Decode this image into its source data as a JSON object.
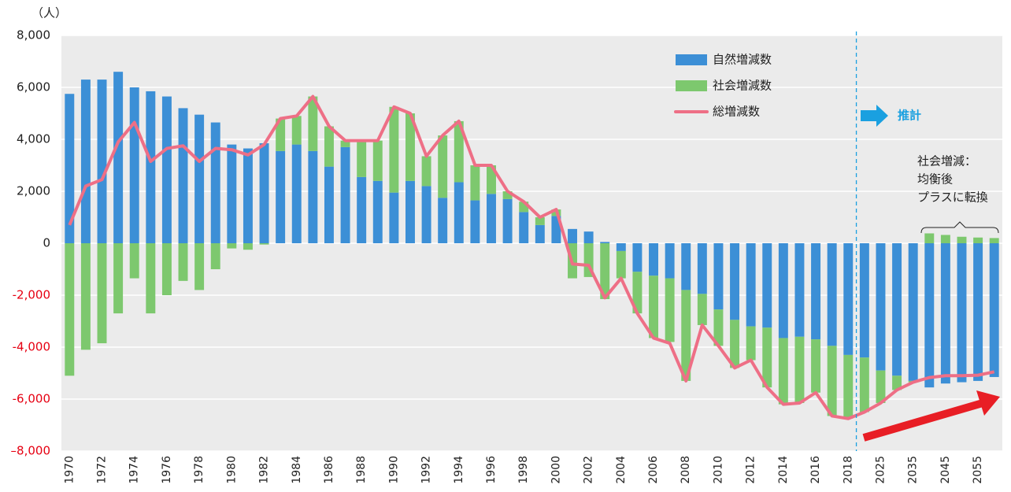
{
  "chart_data": {
    "type": "bar",
    "unit_label": "（人）",
    "categories": [
      "1970",
      null,
      "1972",
      null,
      "1974",
      null,
      "1976",
      null,
      "1978",
      null,
      "1980",
      null,
      "1982",
      null,
      "1984",
      null,
      "1986",
      null,
      "1988",
      null,
      "1990",
      null,
      "1992",
      null,
      "1994",
      null,
      "1996",
      null,
      "1998",
      null,
      "2000",
      null,
      "2002",
      null,
      "2004",
      null,
      "2006",
      null,
      "2008",
      null,
      "2010",
      null,
      "2012",
      null,
      "2014",
      null,
      "2016",
      null,
      "2018",
      null,
      "2025",
      null,
      "2035",
      null,
      "2045",
      null,
      "2055",
      null
    ],
    "series": [
      {
        "name": "自然増減数",
        "type": "bar",
        "color": "#3c8fd6",
        "values": [
          5750,
          6300,
          6300,
          6600,
          6000,
          5850,
          5650,
          5200,
          4950,
          4650,
          3800,
          3650,
          3850,
          3550,
          3800,
          3550,
          2950,
          3700,
          2550,
          2400,
          1950,
          2400,
          2200,
          1750,
          2350,
          1650,
          1900,
          1700,
          1200,
          700,
          1050,
          550,
          450,
          50,
          -300,
          -1100,
          -1250,
          -1350,
          -1800,
          -1950,
          -2550,
          -2950,
          -3200,
          -3250,
          -3650,
          -3600,
          -3700,
          -3950,
          -4300,
          -4400,
          -4900,
          -5100,
          -5300,
          -5550,
          -5400,
          -5350,
          -5300,
          -5150
        ]
      },
      {
        "name": "社会増減数",
        "type": "bar",
        "color": "#7dc86e",
        "values": [
          -5100,
          -4100,
          -3850,
          -2700,
          -1350,
          -2700,
          -2000,
          -1450,
          -1800,
          -1000,
          -200,
          -250,
          -50,
          1250,
          1100,
          2100,
          1550,
          250,
          1400,
          1550,
          3300,
          2600,
          1150,
          2400,
          2350,
          1350,
          1100,
          300,
          400,
          300,
          250,
          -1350,
          -1300,
          -2150,
          -1050,
          -1600,
          -2400,
          -2450,
          -3500,
          -1200,
          -1400,
          -1850,
          -1300,
          -2300,
          -2550,
          -2550,
          -2050,
          -2700,
          -2450,
          -2100,
          -1250,
          -550,
          -50,
          380,
          320,
          250,
          220,
          200
        ]
      },
      {
        "name": "総増減数",
        "type": "line",
        "color": "#ee6f86",
        "values": [
          700,
          2200,
          2450,
          3900,
          4650,
          3150,
          3650,
          3750,
          3150,
          3650,
          3600,
          3400,
          3800,
          4800,
          4900,
          5650,
          4500,
          3950,
          3950,
          3950,
          5250,
          5000,
          3350,
          4150,
          4700,
          3000,
          3000,
          2000,
          1600,
          1000,
          1300,
          -800,
          -850,
          -2100,
          -1350,
          -2700,
          -3650,
          -3850,
          -5300,
          -3150,
          -3950,
          -4800,
          -4500,
          -5550,
          -6200,
          -6150,
          -5750,
          -6650,
          -6750,
          -6500,
          -6150,
          -5650,
          -5350,
          -5170,
          -5100,
          -5100,
          -5080,
          -4950
        ]
      }
    ],
    "ylim": [
      -8000,
      8000
    ],
    "yticks": [
      {
        "value": -8000,
        "label": "–8,000"
      },
      {
        "value": -6000,
        "label": "-6,000"
      },
      {
        "value": -4000,
        "label": "-4,000"
      },
      {
        "value": -2000,
        "label": "-2,000"
      },
      0,
      {
        "value": 2000,
        "label": "2,000"
      },
      {
        "value": 4000,
        "label": "4,000"
      },
      {
        "value": 6000,
        "label": "6,000"
      },
      {
        "value": 8000,
        "label": "8,000"
      }
    ],
    "negative_tick_color": "#e60012",
    "grid": true,
    "legend": "top-right",
    "projection_label": "推計",
    "note_lines": [
      "社会増減：",
      "均衡後",
      "プラスに転換"
    ]
  }
}
